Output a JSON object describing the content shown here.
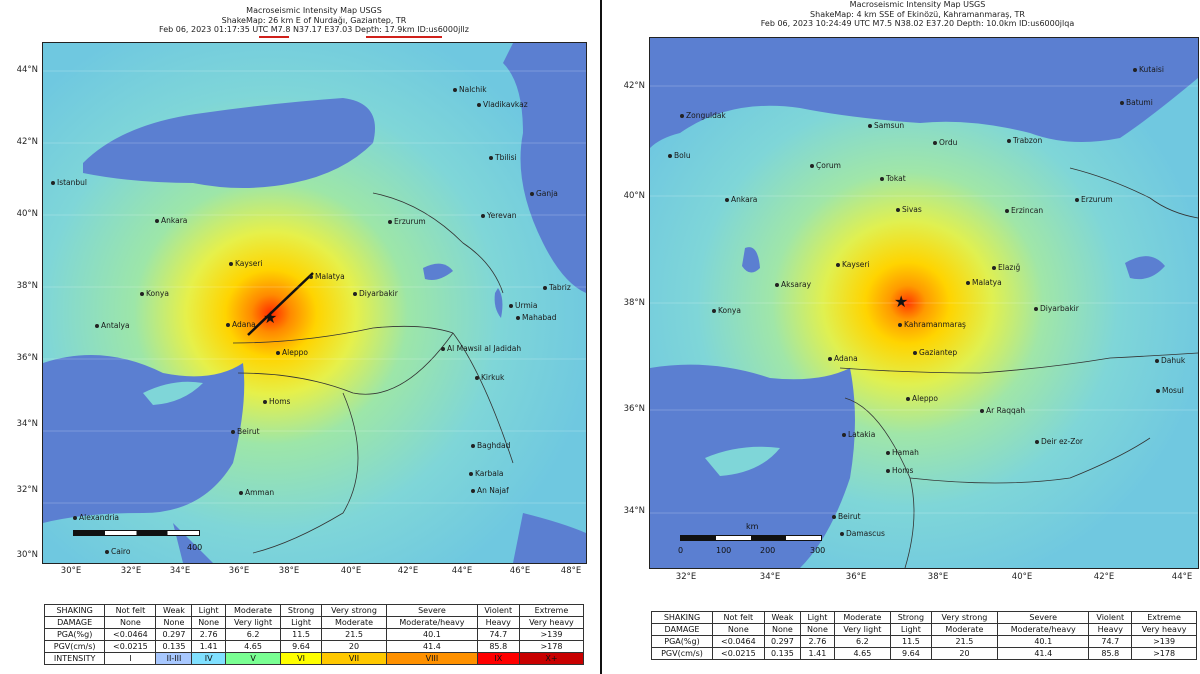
{
  "left_map": {
    "title": "Macroseismic Intensity Map USGS",
    "shakemap": "ShakeMap: 26 km E of Nurdağı, Gaziantep, TR",
    "info": "Feb 06, 2023 01:17:35 UTC M7.8 N37.17 E37.03 Depth: 17.9km ID:us6000jllz",
    "lat_labels": [
      "44°N",
      "42°N",
      "40°N",
      "38°N",
      "36°N",
      "34°N",
      "32°N",
      "30°N"
    ],
    "lon_labels": [
      "30°E",
      "32°E",
      "34°E",
      "36°E",
      "38°E",
      "40°E",
      "42°E",
      "44°E",
      "46°E",
      "48°E"
    ],
    "cities": [
      "Istanbul",
      "Ankara",
      "Kayseri",
      "Konya",
      "Antalya",
      "Adana",
      "Malatya",
      "Diyarbakir",
      "Erzurum",
      "Aleppo",
      "Homs",
      "Beirut",
      "Amman",
      "Alexandria",
      "Cairo",
      "Baghdad",
      "Karbala",
      "An Najaf",
      "Kirkuk",
      "Al Mawsil al Jadidah",
      "Tabriz",
      "Urmia",
      "Mahabad",
      "Yerevan",
      "Tbilisi",
      "Ganja",
      "Vladikavkaz",
      "Nalchik"
    ],
    "scale_label": "400"
  },
  "right_map": {
    "title": "Macroseismic Intensity Map USGS",
    "shakemap": "ShakeMap: 4 km SSE of Ekinözü, Kahramanmaraş, TR",
    "info": "Feb 06, 2023 10:24:49 UTC M7.5 N38.02 E37.20 Depth: 10.0km ID:us6000jlqa",
    "lat_labels": [
      "42°N",
      "40°N",
      "38°N",
      "36°N",
      "34°N"
    ],
    "lon_labels": [
      "32°E",
      "34°E",
      "36°E",
      "38°E",
      "40°E",
      "42°E",
      "44°E"
    ],
    "cities": [
      "Zonguldak",
      "Bolu",
      "Ankara",
      "Samsun",
      "Ordu",
      "Trabzon",
      "Batumi",
      "Kutaisi",
      "Çorum",
      "Tokat",
      "Sivas",
      "Erzincan",
      "Erzurum",
      "Kayseri",
      "Aksaray",
      "Konya",
      "Malatya",
      "Elazığ",
      "Diyarbakir",
      "Kahramanmaraş",
      "Gaziantep",
      "Adana",
      "Aleppo",
      "Ar Raqqah",
      "Latakia",
      "Hamah",
      "Homs",
      "Deir ez-Zor",
      "Beirut",
      "Damascus",
      "Dahuk",
      "Mosul"
    ],
    "scale_title": "km",
    "scale_ticks": [
      "0",
      "100",
      "200",
      "300"
    ]
  },
  "legend": {
    "rows": [
      [
        "SHAKING",
        "Not felt",
        "Weak",
        "Light",
        "Moderate",
        "Strong",
        "Very strong",
        "Severe",
        "Violent",
        "Extreme"
      ],
      [
        "DAMAGE",
        "None",
        "None",
        "None",
        "Very light",
        "Light",
        "Moderate",
        "Moderate/heavy",
        "Heavy",
        "Very heavy"
      ],
      [
        "PGA(%g)",
        "<0.0464",
        "0.297",
        "2.76",
        "6.2",
        "11.5",
        "21.5",
        "40.1",
        "74.7",
        ">139"
      ],
      [
        "PGV(cm/s)",
        "<0.0215",
        "0.135",
        "1.41",
        "4.65",
        "9.64",
        "20",
        "41.4",
        "85.8",
        ">178"
      ]
    ],
    "intensity_label": "INTENSITY",
    "intensity": [
      "I",
      "II-III",
      "IV",
      "V",
      "VI",
      "VII",
      "VIII",
      "IX",
      "X+"
    ],
    "intensity_colors": [
      "#ffffff",
      "#bfccff",
      "#a0e6ff",
      "#80ffff",
      "#7aff93",
      "#ffff00",
      "#ffc800",
      "#ff9100",
      "#ff0000",
      "#c80000"
    ]
  }
}
